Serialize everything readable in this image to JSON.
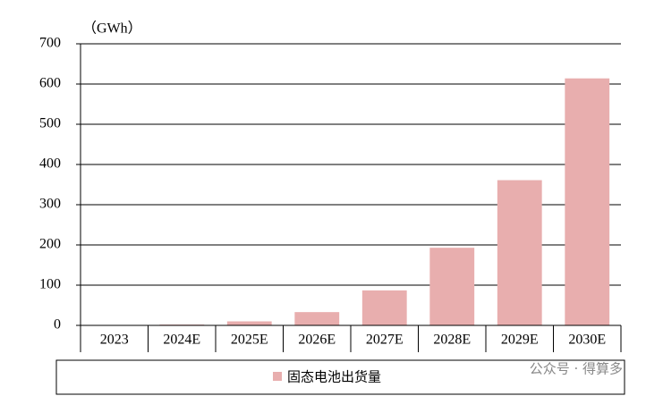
{
  "chart_data": {
    "type": "bar",
    "y_label": "（GWh）",
    "categories": [
      "2023",
      "2024E",
      "2025E",
      "2026E",
      "2027E",
      "2028E",
      "2029E",
      "2030E"
    ],
    "series": [
      {
        "name": "固态电池出货量",
        "color": "#e8aeae",
        "values": [
          0.5,
          2,
          10,
          33,
          87,
          193,
          361,
          614
        ]
      }
    ],
    "ylim": [
      0,
      700
    ],
    "yticks": [
      0,
      100,
      200,
      300,
      400,
      500,
      600,
      700
    ],
    "grid": true,
    "legend": "bottom",
    "watermark": "公众号 · 得算多"
  }
}
